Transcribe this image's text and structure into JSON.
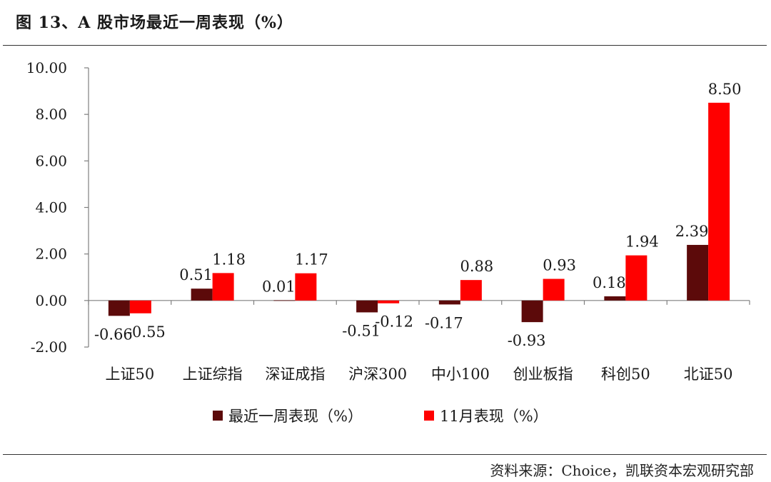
{
  "figure": {
    "title": "图 13、A 股市场最近一周表现（%）",
    "source": "资料来源：Choice，凯联资本宏观研究部"
  },
  "colors": {
    "series1": "#5c0a0a",
    "series2": "#ff0000",
    "axis": "#7f7f7f",
    "text": "#1a1a1a"
  },
  "chart_data": {
    "type": "bar",
    "categories": [
      "上证50",
      "上证综指",
      "深证成指",
      "沪深300",
      "中小100",
      "创业板指",
      "科创50",
      "北证50"
    ],
    "series": [
      {
        "name": "最近一周表现（%）",
        "values": [
          -0.66,
          0.51,
          0.01,
          -0.51,
          -0.17,
          -0.93,
          0.18,
          2.39
        ],
        "labels": [
          "-0.66",
          "0.51",
          "0.01",
          "-0.51",
          "-0.17",
          "-0.93",
          "0.18",
          "2.39"
        ]
      },
      {
        "name": "11月表现（%）",
        "values": [
          -0.55,
          1.18,
          1.17,
          -0.12,
          0.88,
          0.93,
          1.94,
          8.5
        ],
        "labels": [
          "-0.55",
          "1.18",
          "1.17",
          "-0.12",
          "0.88",
          "0.93",
          "1.94",
          "8.50"
        ]
      }
    ],
    "ylim": [
      -2,
      10
    ],
    "yticks": [
      "-2.00",
      "0.00",
      "2.00",
      "4.00",
      "6.00",
      "8.00",
      "10.00"
    ],
    "ytick_values": [
      -2,
      0,
      2,
      4,
      6,
      8,
      10
    ],
    "grid": false,
    "legend": "bottom-center"
  }
}
